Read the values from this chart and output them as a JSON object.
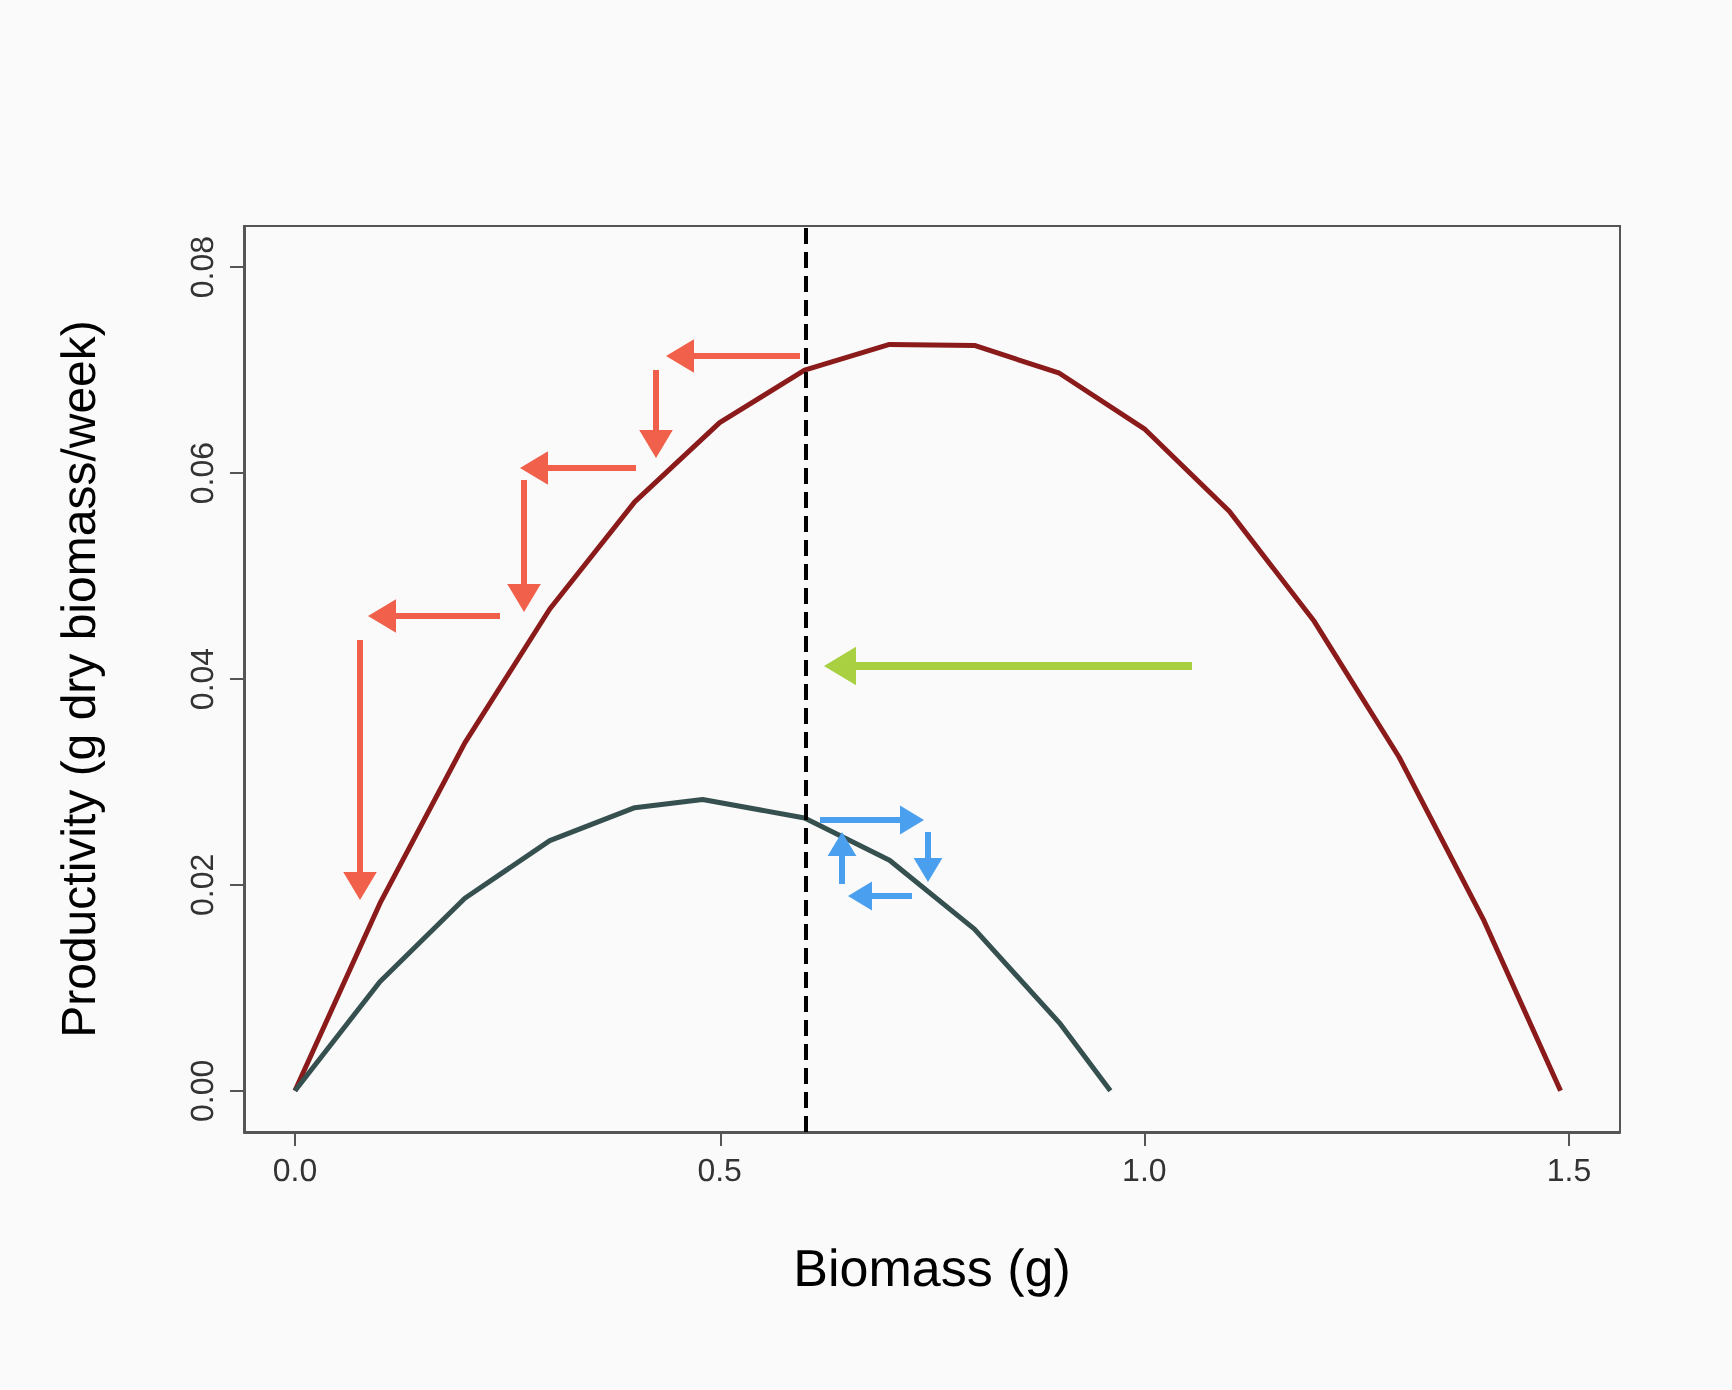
{
  "chart_data": {
    "type": "line",
    "xlabel": "Biomass (g)",
    "ylabel": "Productivity (g dry biomass/week)",
    "xlim": [
      -0.06,
      1.56
    ],
    "xticks": [
      {
        "value": 0,
        "label": "0.0"
      },
      {
        "value": 0.5,
        "label": "0.5"
      },
      {
        "value": 1,
        "label": "1.0"
      },
      {
        "value": 1.5,
        "label": "1.5"
      }
    ],
    "ylim": [
      -0.004,
      0.084
    ],
    "yticks": [
      {
        "value": 0,
        "label": "0.00"
      },
      {
        "value": 0.02,
        "label": "0.02"
      },
      {
        "value": 0.04,
        "label": "0.04"
      },
      {
        "value": 0.06,
        "label": "0.06"
      },
      {
        "value": 0.08,
        "label": "0.08"
      }
    ],
    "grid": false,
    "marker": "none",
    "line_style": "solid",
    "series": [
      {
        "color": "#8b1a1a",
        "x": [
          0,
          0.1,
          0.2,
          0.3,
          0.4,
          0.5,
          0.6,
          0.7,
          0.8,
          0.9,
          1.0,
          1.1,
          1.2,
          1.3,
          1.4,
          1.49
        ],
        "values": [
          0,
          0.0182,
          0.0338,
          0.0468,
          0.0572,
          0.0649,
          0.07,
          0.0725,
          0.0724,
          0.0697,
          0.0643,
          0.0563,
          0.0456,
          0.0324,
          0.0165,
          0
        ]
      },
      {
        "color": "#35504f",
        "x": [
          0,
          0.1,
          0.2,
          0.3,
          0.4,
          0.48,
          0.6,
          0.7,
          0.8,
          0.9,
          0.96
        ],
        "values": [
          0,
          0.0106,
          0.0187,
          0.0243,
          0.0275,
          0.0283,
          0.0265,
          0.0224,
          0.0157,
          0.0066,
          0
        ]
      }
    ],
    "ref_lines": [
      {
        "axis": "x",
        "value": 0.6,
        "color": "#000000",
        "line_style": "dashed"
      }
    ]
  }
}
